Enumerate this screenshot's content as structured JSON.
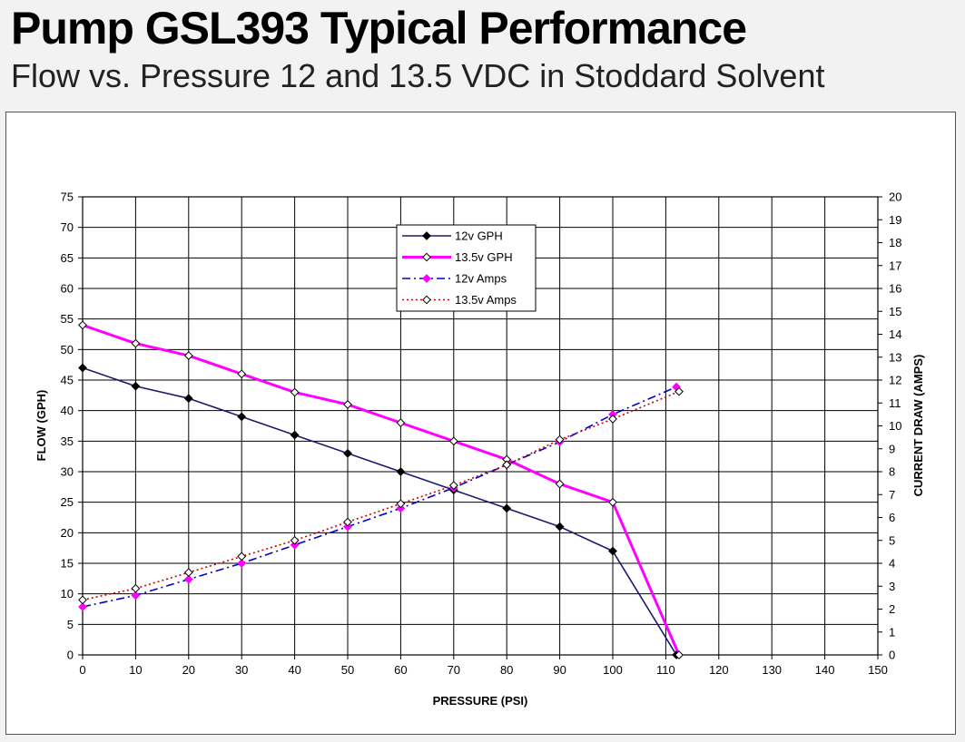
{
  "header": {
    "title": "Pump GSL393 Typical Performance",
    "subtitle": "Flow vs. Pressure 12 and 13.5 VDC in Stoddard Solvent"
  },
  "chart_data": {
    "type": "line",
    "xlabel": "PRESSURE (PSI)",
    "ylabel": "FLOW (GPH)",
    "y2label": "CURRENT DRAW (AMPS)",
    "xlim": [
      0,
      150
    ],
    "ylim": [
      0,
      75
    ],
    "y2lim": [
      0,
      20
    ],
    "x_ticks": [
      "0",
      "10",
      "20",
      "30",
      "40",
      "50",
      "60",
      "70",
      "80",
      "90",
      "100",
      "110",
      "120",
      "130",
      "140",
      "150"
    ],
    "y_ticks": [
      "0",
      "5",
      "10",
      "15",
      "20",
      "25",
      "30",
      "35",
      "40",
      "45",
      "50",
      "55",
      "60",
      "65",
      "70",
      "75"
    ],
    "y2_ticks": [
      "0",
      "1",
      "2",
      "3",
      "4",
      "5",
      "6",
      "7",
      "8",
      "9",
      "10",
      "11",
      "12",
      "13",
      "14",
      "15",
      "16",
      "17",
      "18",
      "19",
      "20"
    ],
    "grid": true,
    "legend_position": "top-center",
    "series": [
      {
        "name": "12v GPH",
        "axis": "left",
        "color": "#1a1a6e",
        "style": "solid",
        "marker": "filled-diamond",
        "x": [
          0,
          10,
          20,
          30,
          40,
          50,
          60,
          70,
          80,
          90,
          100,
          112
        ],
        "y": [
          47,
          44,
          42,
          39,
          36,
          33,
          30,
          27,
          24,
          21,
          17,
          0
        ]
      },
      {
        "name": "13.5v GPH",
        "axis": "left",
        "color": "#ff00ff",
        "style": "solid",
        "marker": "open-diamond",
        "x": [
          0,
          10,
          20,
          30,
          40,
          50,
          60,
          70,
          80,
          90,
          100,
          112.5
        ],
        "y": [
          54,
          51,
          49,
          46,
          43,
          41,
          38,
          35,
          32,
          28,
          25,
          0
        ]
      },
      {
        "name": "12v Amps",
        "axis": "right",
        "color": "#0000cc",
        "marker_color": "#ff00ff",
        "style": "dash-dot",
        "marker": "filled-diamond",
        "x": [
          0,
          10,
          20,
          30,
          40,
          50,
          60,
          70,
          80,
          90,
          100,
          112
        ],
        "y": [
          2.1,
          2.6,
          3.3,
          4.0,
          4.8,
          5.6,
          6.4,
          7.3,
          8.3,
          9.3,
          10.5,
          11.7
        ]
      },
      {
        "name": "13.5v Amps",
        "axis": "right",
        "color": "#cc0000",
        "style": "dotted",
        "marker": "open-diamond",
        "x": [
          0,
          10,
          20,
          30,
          40,
          50,
          60,
          70,
          80,
          90,
          100,
          112.5
        ],
        "y": [
          2.4,
          2.9,
          3.6,
          4.3,
          5.0,
          5.8,
          6.6,
          7.4,
          8.3,
          9.4,
          10.3,
          11.5
        ]
      }
    ]
  }
}
